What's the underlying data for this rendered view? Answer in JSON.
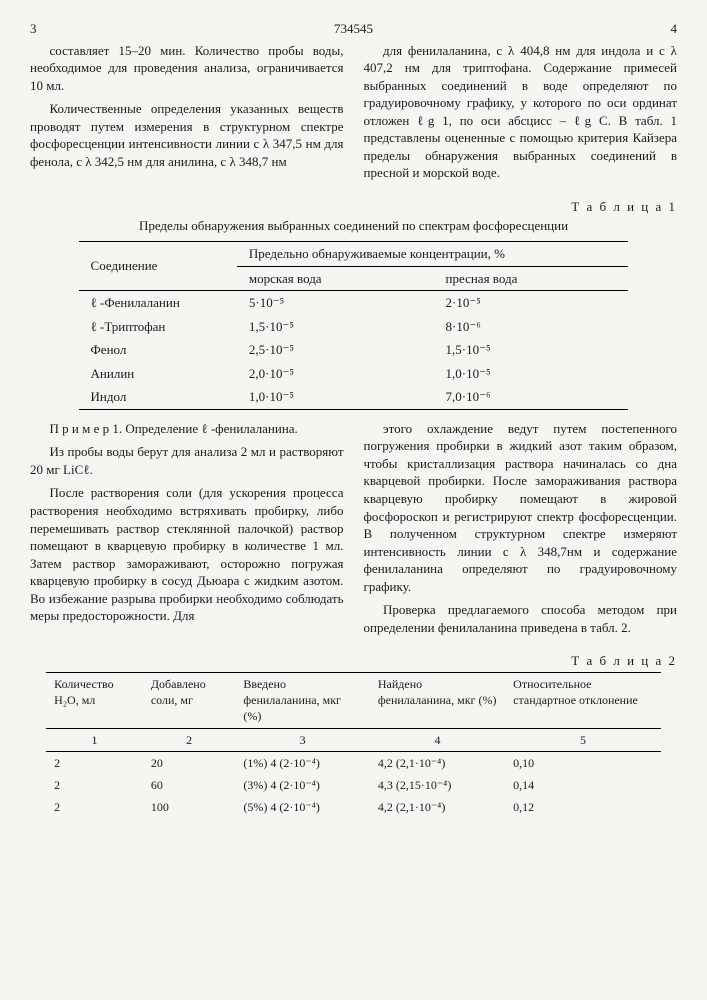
{
  "header": {
    "page_left": "3",
    "doc_num": "734545",
    "page_right": "4"
  },
  "col_left": {
    "p1": "составляет 15–20 мин. Количество пробы воды, необходимое для проведения анализа, ограничивается 10 мл.",
    "p2": "Количественные определения указанных веществ проводят путем измерения в структурном спектре фосфоресценции интенсивности линии с λ 347,5 нм для фенола, с λ 342,5 нм для анилина, с λ 348,7 нм"
  },
  "col_right": {
    "p1": "для фенилаланина, с λ 404,8 нм для индола и с λ 407,2 нм для триптофана. Содержание примесей выбранных соединений в воде определяют по градуировочному графику, у которого по оси ординат отложен ℓg 1, по оси абсцисс – ℓg С. В табл. 1 представлены оцененные с помощью критерия Кайзера пределы обнаружения выбранных соединений в пресной и морской воде."
  },
  "table1": {
    "caption": "Т а б л и ц а 1",
    "subcaption": "Пределы обнаружения выбранных соединений по спектрам фосфоресценции",
    "header_compound": "Соединение",
    "header_limits": "Предельно обнаруживаемые концентрации, %",
    "header_sea": "морская вода",
    "header_fresh": "пресная вода",
    "rows": [
      {
        "name": "ℓ -Фенилаланин",
        "sea": "5·10⁻⁵",
        "fresh": "2·10⁻⁵"
      },
      {
        "name": "ℓ -Триптофан",
        "sea": "1,5·10⁻⁵",
        "fresh": "8·10⁻⁶"
      },
      {
        "name": "Фенол",
        "sea": "2,5·10⁻⁵",
        "fresh": "1,5·10⁻⁵"
      },
      {
        "name": "Анилин",
        "sea": "2,0·10⁻⁵",
        "fresh": "1,0·10⁻⁵"
      },
      {
        "name": "Индол",
        "sea": "1,0·10⁻⁵",
        "fresh": "7,0·10⁻⁶"
      }
    ]
  },
  "col2_left": {
    "p1": "П р и м е р 1. Определение ℓ -фенилаланина.",
    "p2": "Из пробы воды берут для анализа 2 мл и растворяют 20 мг LiCℓ.",
    "p3": "После растворения соли (для ускорения процесса растворения необходимо встряхивать пробирку, либо перемешивать раствор стеклянной палочкой) раствор помещают в кварцевую пробирку в количестве 1 мл. Затем раствор замораживают, осторожно погружая кварцевую пробирку в сосуд Дьюара с жидким азотом. Во избежание разрыва пробирки необходимо соблюдать меры предосторожности. Для"
  },
  "col2_right": {
    "p1": "этого охлаждение ведут путем постепенного погружения пробирки в жидкий азот таким образом, чтобы кристаллизация раствора начиналась со дна кварцевой пробирки. После замораживания раствора кварцевую пробирку помещают в жировой фосфороскоп и регистрируют спектр фосфоресценции. В полученном структурном спектре измеряют интенсивность линии с λ 348,7нм и содержание фенилаланина определяют по градуировочному графику.",
    "p2": "Проверка предлагаемого способа методом при определении фенилаланина приведена в табл. 2."
  },
  "table2": {
    "caption": "Т а б л и ц а 2",
    "headers": {
      "h1": "Количество H₂O, мл",
      "h2": "Добавлено соли, мг",
      "h3": "Введено фенилаланина, мкг (%)",
      "h4": "Найдено фенилаланина, мкг (%)",
      "h5": "Относительное стандартное отклонение"
    },
    "num_row": [
      "1",
      "2",
      "3",
      "4",
      "5"
    ],
    "rows": [
      {
        "c1": "2",
        "c2": "20",
        "c3": "(1%) 4 (2·10⁻⁴)",
        "c4": "4,2 (2,1·10⁻⁴)",
        "c5": "0,10"
      },
      {
        "c1": "2",
        "c2": "60",
        "c3": "(3%) 4 (2·10⁻⁴)",
        "c4": "4,3 (2,15·10⁻⁴)",
        "c5": "0,14"
      },
      {
        "c1": "2",
        "c2": "100",
        "c3": "(5%) 4 (2·10⁻⁴)",
        "c4": "4,2 (2,1·10⁻⁴)",
        "c5": "0,12"
      }
    ]
  }
}
